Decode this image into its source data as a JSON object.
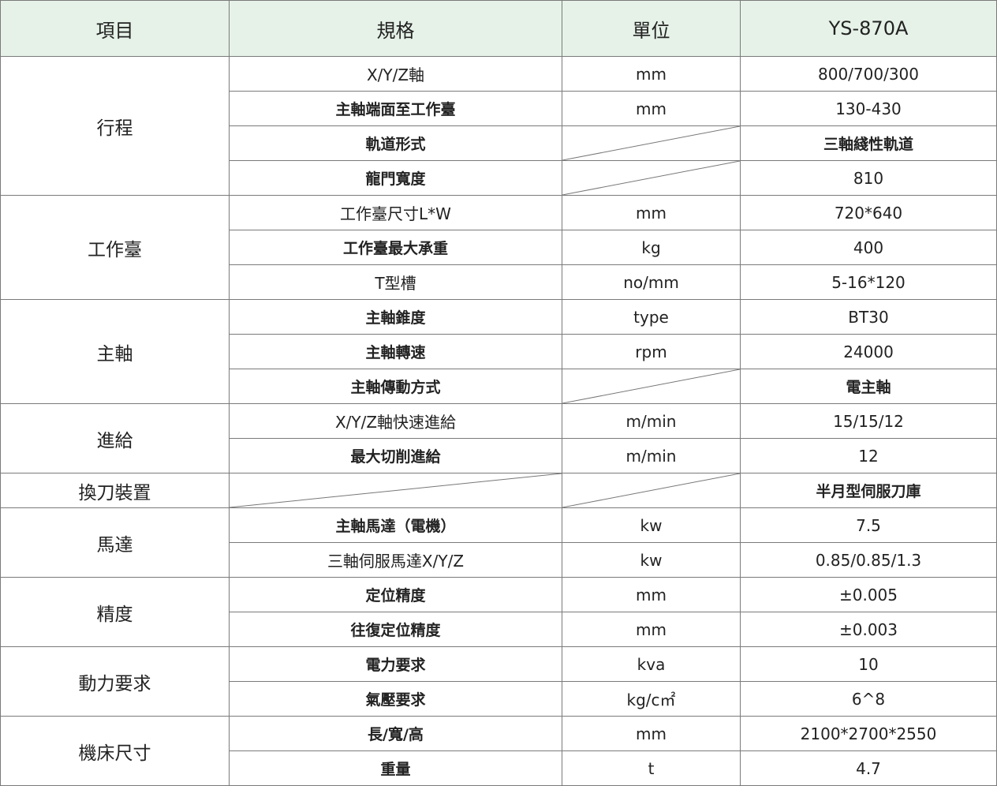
{
  "header": {
    "item": "項目",
    "spec": "規格",
    "unit": "單位",
    "model": "YS-870A"
  },
  "header_bg": "#e6f2e8",
  "groups": [
    {
      "name": "行程",
      "rows": [
        {
          "spec": "X/Y/Z軸",
          "unit": "mm",
          "value": "800/700/300"
        },
        {
          "spec": "主軸端面至工作臺",
          "unit": "mm",
          "value": "130-430"
        },
        {
          "spec": "軌道形式",
          "unit": null,
          "value": "三軸綫性軌道"
        },
        {
          "spec": "龍門寬度",
          "unit": null,
          "value": "810"
        }
      ]
    },
    {
      "name": "工作臺",
      "rows": [
        {
          "spec": "工作臺尺寸L*W",
          "unit": "mm",
          "value": "720*640"
        },
        {
          "spec": "工作臺最大承重",
          "unit": "kg",
          "value": "400"
        },
        {
          "spec": "T型槽",
          "unit": "no/mm",
          "value": "5-16*120"
        }
      ]
    },
    {
      "name": "主軸",
      "rows": [
        {
          "spec": "主軸錐度",
          "unit": "type",
          "value": "BT30"
        },
        {
          "spec": "主軸轉速",
          "unit": "rpm",
          "value": "24000"
        },
        {
          "spec": "主軸傳動方式",
          "unit": null,
          "value": "電主軸"
        }
      ]
    },
    {
      "name": "進給",
      "rows": [
        {
          "spec": "X/Y/Z軸快速進給",
          "unit": "m/min",
          "value": "15/15/12"
        },
        {
          "spec": "最大切削進給",
          "unit": "m/min",
          "value": "12"
        }
      ]
    },
    {
      "name": "換刀裝置",
      "rows": [
        {
          "spec": null,
          "unit": null,
          "value": "半月型伺服刀庫"
        }
      ]
    },
    {
      "name": "馬達",
      "rows": [
        {
          "spec": "主軸馬達（電機）",
          "unit": "kw",
          "value": "7.5"
        },
        {
          "spec": "三軸伺服馬達X/Y/Z",
          "unit": "kw",
          "value": "0.85/0.85/1.3"
        }
      ]
    },
    {
      "name": "精度",
      "rows": [
        {
          "spec": "定位精度",
          "unit": "mm",
          "value": "±0.005"
        },
        {
          "spec": "往復定位精度",
          "unit": "mm",
          "value": "±0.003"
        }
      ]
    },
    {
      "name": "動力要求",
      "rows": [
        {
          "spec": "電力要求",
          "unit": "kva",
          "value": "10"
        },
        {
          "spec": "氣壓要求",
          "unit": "kg/c㎡",
          "value": "6^8"
        }
      ]
    },
    {
      "name": "機床尺寸",
      "rows": [
        {
          "spec": "長/寬/高",
          "unit": "mm",
          "value": "2100*2700*2550"
        },
        {
          "spec": "重量",
          "unit": "t",
          "value": "4.7"
        }
      ]
    }
  ]
}
